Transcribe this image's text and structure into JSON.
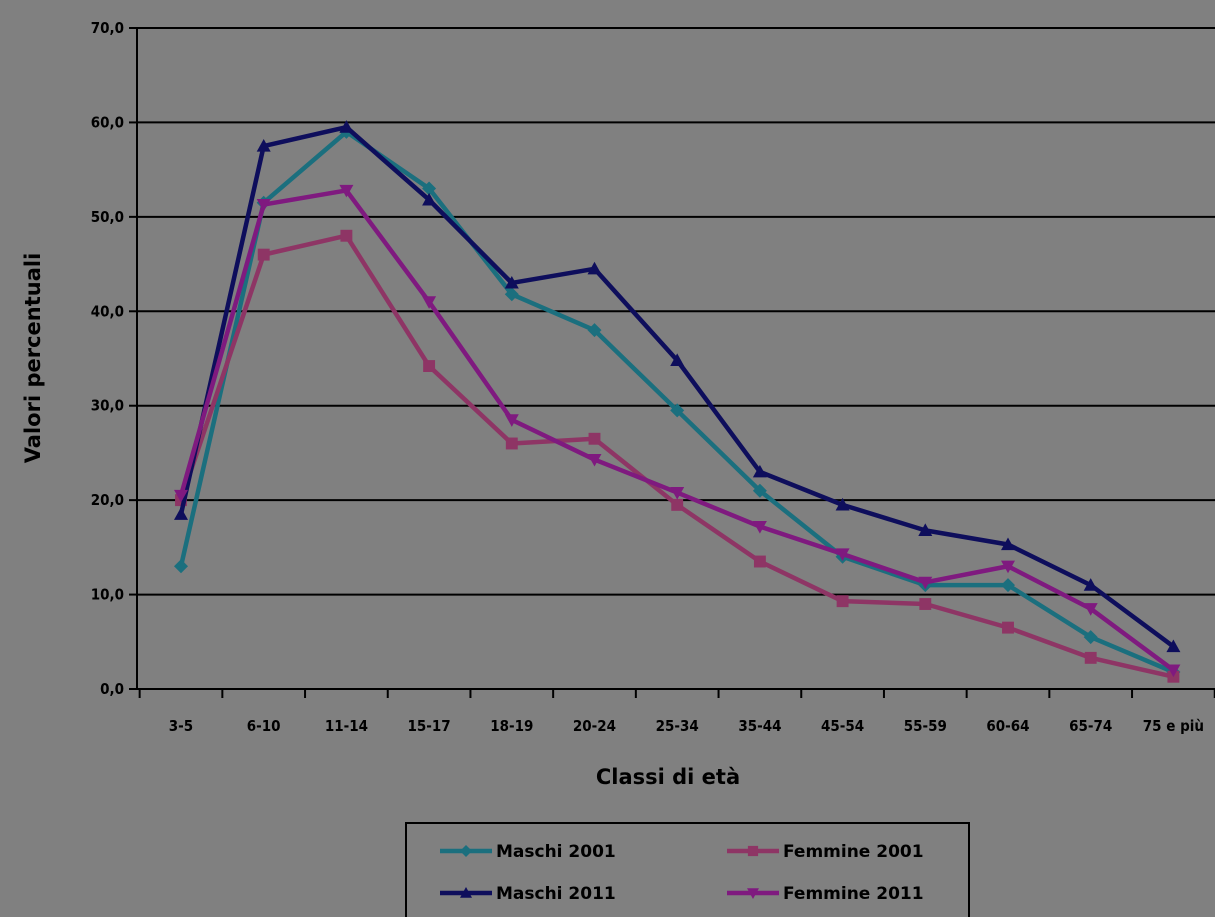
{
  "chart_data": {
    "type": "line",
    "title": "",
    "xlabel": "Classi di età",
    "ylabel": "Valori percentuali",
    "ylim": [
      0,
      70
    ],
    "yticks": [
      "0,0",
      "10,0",
      "20,0",
      "30,0",
      "40,0",
      "50,0",
      "60,0",
      "70,0"
    ],
    "grid": true,
    "legend_position": "bottom",
    "categories": [
      "3-5",
      "6-10",
      "11-14",
      "15-17",
      "18-19",
      "20-24",
      "25-34",
      "35-44",
      "45-54",
      "55-59",
      "60-64",
      "65-74",
      "75 e più"
    ],
    "series": [
      {
        "name": "Maschi 2001",
        "color": "#1b6f7e",
        "marker": "diamond",
        "values": [
          13.0,
          51.5,
          59.0,
          53.0,
          41.8,
          38.0,
          29.5,
          21.0,
          14.0,
          11.0,
          11.0,
          5.5,
          1.8
        ]
      },
      {
        "name": "Femmine 2001",
        "color": "#8e3565",
        "marker": "square",
        "values": [
          20.0,
          46.0,
          48.0,
          34.2,
          26.0,
          26.5,
          19.5,
          13.5,
          9.3,
          9.0,
          6.5,
          3.3,
          1.3
        ]
      },
      {
        "name": "Maschi 2011",
        "color": "#0e0e5c",
        "marker": "triangle",
        "values": [
          18.5,
          57.5,
          59.5,
          51.8,
          43.0,
          44.5,
          34.8,
          23.0,
          19.5,
          16.8,
          15.3,
          11.0,
          4.5
        ]
      },
      {
        "name": "Femmine 2011",
        "color": "#7f1a7f",
        "marker": "triangle-down",
        "values": [
          20.5,
          51.3,
          52.8,
          41.0,
          28.5,
          24.3,
          20.8,
          17.2,
          14.3,
          11.3,
          13.0,
          8.5,
          2.0
        ]
      }
    ]
  }
}
